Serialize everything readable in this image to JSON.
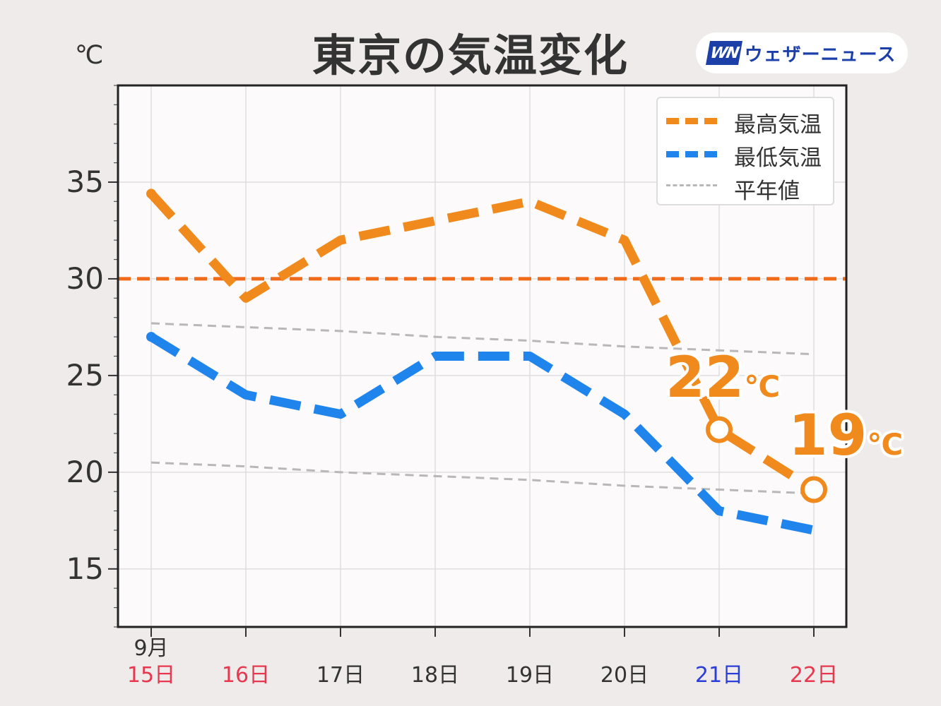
{
  "header": {
    "title": "東京の気温変化",
    "unit": "℃",
    "logo_mark": "WN",
    "logo_text": "ウェザーニュース"
  },
  "legend": {
    "items": [
      {
        "label": "最高気温",
        "color": "#f18a1d",
        "style": "dashed-thick"
      },
      {
        "label": "最低気温",
        "color": "#1f84ec",
        "style": "dashed-thick"
      },
      {
        "label": "平年値",
        "color": "#b8b8b8",
        "style": "dashed-thin"
      }
    ]
  },
  "callouts": [
    {
      "value": "22",
      "unit": "℃"
    },
    {
      "value": "19",
      "unit": "℃"
    }
  ],
  "chart_data": {
    "type": "line",
    "title": "東京の気温変化",
    "ylabel": "℃",
    "ylim": [
      12,
      40
    ],
    "yticks": [
      15,
      20,
      25,
      30,
      35
    ],
    "month_label": "9月",
    "categories": [
      "15日",
      "16日",
      "17日",
      "18日",
      "19日",
      "20日",
      "21日",
      "22日"
    ],
    "category_colors": [
      "#e8384f",
      "#e8384f",
      "#333333",
      "#333333",
      "#333333",
      "#333333",
      "#2b3fd8",
      "#e8384f"
    ],
    "series": [
      {
        "name": "最高気温",
        "color": "#f18a1d",
        "values": [
          34.4,
          29.0,
          32.0,
          33.0,
          34.0,
          32.0,
          22.2,
          19.1
        ],
        "style": "dashed-thick"
      },
      {
        "name": "最低気温",
        "color": "#1f84ec",
        "values": [
          27.0,
          24.0,
          23.0,
          26.0,
          26.0,
          23.0,
          18.0,
          17.0
        ],
        "style": "dashed-thick"
      },
      {
        "name": "平年値",
        "color": "#b8b8b8",
        "values": [
          27.7,
          27.5,
          27.3,
          27.0,
          26.8,
          26.5,
          26.3,
          26.1
        ],
        "style": "dashed-thin"
      },
      {
        "name": "平年値",
        "color": "#b8b8b8",
        "values": [
          20.5,
          20.3,
          20.0,
          19.8,
          19.6,
          19.3,
          19.1,
          18.9
        ],
        "style": "dashed-thin"
      }
    ],
    "reference_lines": [
      {
        "y": 30,
        "color": "#f06a1a"
      }
    ],
    "highlighted_points": [
      {
        "series": 0,
        "index": 6
      },
      {
        "series": 0,
        "index": 7
      }
    ],
    "grid": true,
    "legend_position": "top-right"
  }
}
